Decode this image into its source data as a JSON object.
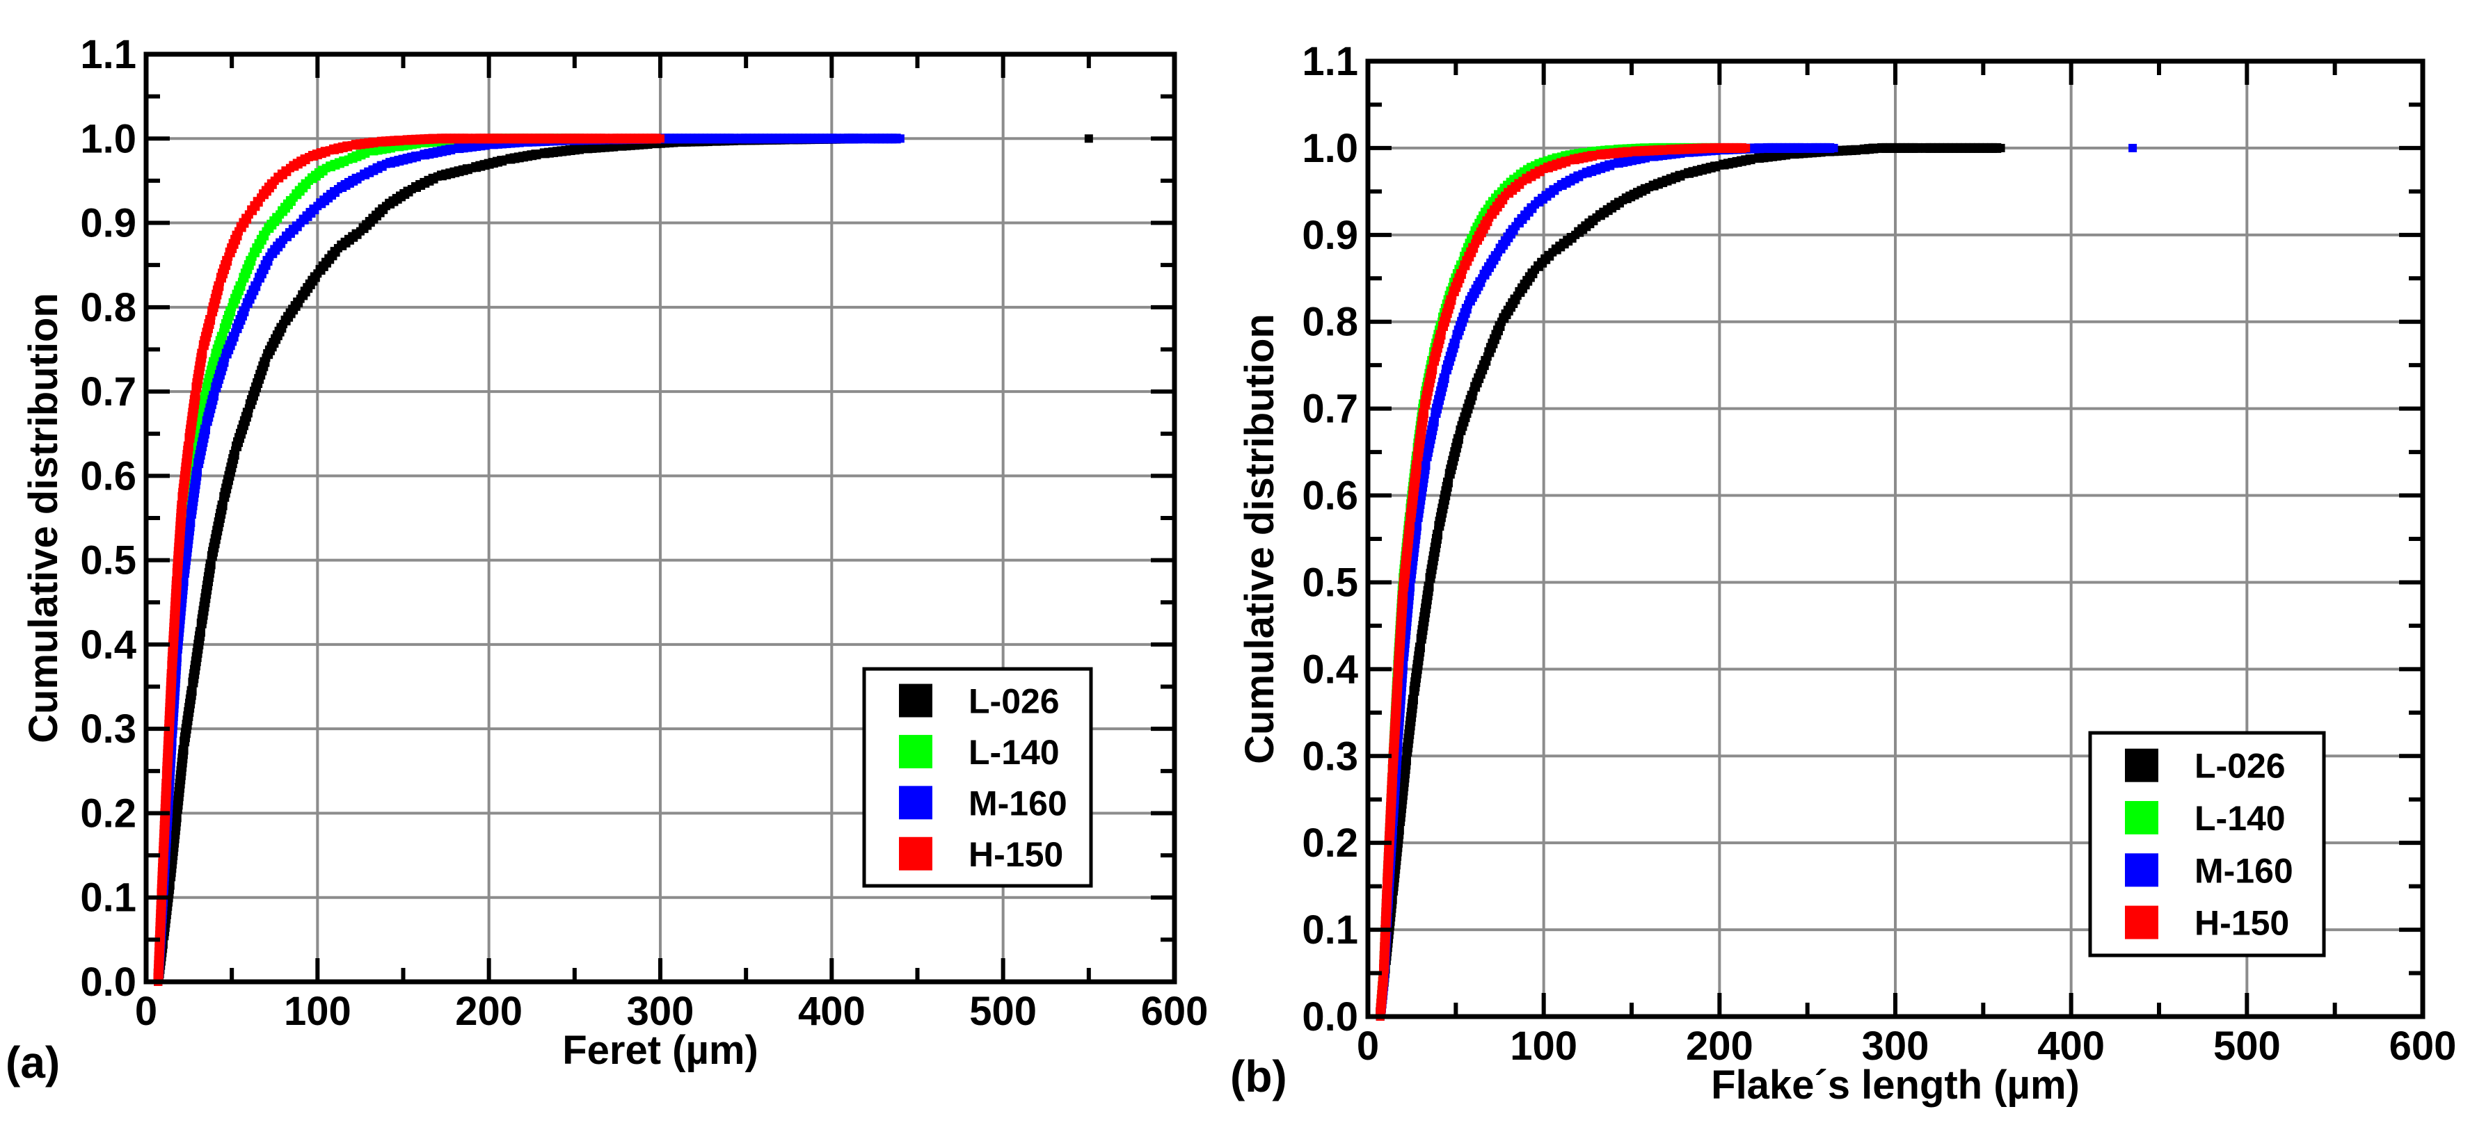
{
  "chart_data": [
    {
      "type": "scatter",
      "panel_label": "(a)",
      "title": "",
      "xlabel": "Feret (µm)",
      "ylabel": "Cumulative distribution",
      "xlim": [
        0,
        600
      ],
      "ylim": [
        0,
        1.1
      ],
      "xticks": [
        "0",
        "100",
        "200",
        "300",
        "400",
        "500",
        "600"
      ],
      "yticks": [
        "0.0",
        "0.1",
        "0.2",
        "0.3",
        "0.4",
        "0.5",
        "0.6",
        "0.7",
        "0.8",
        "0.9",
        "1.0",
        "1.1"
      ],
      "grid": true,
      "legend_position": "bottom-right",
      "series": [
        {
          "name": "L-026",
          "color": "#000000",
          "x": [
            7,
            10,
            14,
            18,
            22,
            27,
            32,
            38,
            45,
            52,
            60,
            70,
            80,
            90,
            100,
            112,
            125,
            140,
            155,
            170,
            190,
            210,
            230,
            255,
            275,
            295,
            310,
            330,
            345,
            375,
            415,
            550
          ],
          "y": [
            0.0,
            0.05,
            0.12,
            0.2,
            0.28,
            0.35,
            0.42,
            0.5,
            0.57,
            0.63,
            0.68,
            0.74,
            0.78,
            0.81,
            0.84,
            0.87,
            0.89,
            0.92,
            0.94,
            0.955,
            0.965,
            0.975,
            0.982,
            0.988,
            0.991,
            0.994,
            0.996,
            0.997,
            0.998,
            0.999,
            1.0,
            1.0
          ]
        },
        {
          "name": "L-140",
          "color": "#00ff00",
          "x": [
            7,
            9,
            12,
            15,
            18,
            22,
            26,
            30,
            35,
            40,
            45,
            50,
            56,
            62,
            70,
            78,
            86,
            95,
            105,
            118,
            130,
            145,
            160,
            180,
            200,
            225,
            255
          ],
          "y": [
            0.0,
            0.08,
            0.2,
            0.32,
            0.42,
            0.52,
            0.59,
            0.65,
            0.7,
            0.74,
            0.77,
            0.8,
            0.83,
            0.86,
            0.89,
            0.91,
            0.93,
            0.95,
            0.965,
            0.975,
            0.985,
            0.99,
            0.995,
            0.998,
            1.0,
            1.0,
            1.0
          ]
        },
        {
          "name": "M-160",
          "color": "#0000ff",
          "x": [
            7,
            9,
            12,
            15,
            18,
            22,
            26,
            30,
            35,
            40,
            46,
            52,
            58,
            65,
            72,
            80,
            90,
            100,
            112,
            125,
            140,
            160,
            180,
            200,
            220,
            245,
            270,
            300,
            345,
            405,
            420,
            440
          ],
          "y": [
            0.0,
            0.07,
            0.18,
            0.29,
            0.39,
            0.48,
            0.55,
            0.61,
            0.66,
            0.7,
            0.74,
            0.77,
            0.8,
            0.83,
            0.86,
            0.88,
            0.9,
            0.92,
            0.94,
            0.955,
            0.97,
            0.98,
            0.988,
            0.993,
            0.996,
            0.998,
            0.999,
            1.0,
            1.0,
            1.0,
            1.0,
            1.0
          ]
        },
        {
          "name": "H-150",
          "color": "#ff0000",
          "x": [
            7,
            9,
            12,
            15,
            18,
            21,
            25,
            29,
            33,
            38,
            43,
            48,
            54,
            60,
            67,
            75,
            84,
            95,
            107,
            120,
            135,
            150,
            170,
            190,
            210,
            240,
            270,
            300
          ],
          "y": [
            0.0,
            0.1,
            0.24,
            0.37,
            0.48,
            0.57,
            0.64,
            0.7,
            0.75,
            0.79,
            0.83,
            0.86,
            0.89,
            0.91,
            0.93,
            0.95,
            0.965,
            0.978,
            0.986,
            0.992,
            0.996,
            0.998,
            1.0,
            1.0,
            1.0,
            1.0,
            1.0,
            1.0
          ]
        }
      ]
    },
    {
      "type": "scatter",
      "panel_label": "(b)",
      "title": "",
      "xlabel": "Flake´s length (µm)",
      "ylabel": "Cumulative distribution",
      "xlim": [
        0,
        600
      ],
      "ylim": [
        0,
        1.1
      ],
      "xticks": [
        "0",
        "100",
        "200",
        "300",
        "400",
        "500",
        "600"
      ],
      "yticks": [
        "0.0",
        "0.1",
        "0.2",
        "0.3",
        "0.4",
        "0.5",
        "0.6",
        "0.7",
        "0.8",
        "0.9",
        "1.0",
        "1.1"
      ],
      "grid": true,
      "legend_position": "bottom-right",
      "series": [
        {
          "name": "L-026",
          "color": "#000000",
          "x": [
            7,
            10,
            14,
            18,
            22,
            26,
            30,
            35,
            40,
            46,
            52,
            60,
            68,
            76,
            85,
            95,
            105,
            118,
            130,
            145,
            160,
            180,
            200,
            220,
            240,
            260,
            280,
            290,
            315,
            360
          ],
          "y": [
            0.0,
            0.06,
            0.14,
            0.22,
            0.3,
            0.37,
            0.43,
            0.5,
            0.56,
            0.62,
            0.67,
            0.72,
            0.76,
            0.8,
            0.83,
            0.86,
            0.88,
            0.9,
            0.92,
            0.94,
            0.955,
            0.97,
            0.98,
            0.988,
            0.993,
            0.996,
            0.998,
            1.0,
            1.0,
            1.0
          ]
        },
        {
          "name": "L-140",
          "color": "#00ff00",
          "x": [
            7,
            9,
            11,
            14,
            17,
            20,
            24,
            28,
            32,
            37,
            42,
            48,
            54,
            60,
            68,
            76,
            85,
            95,
            110,
            125,
            140,
            160,
            185,
            200
          ],
          "y": [
            0.0,
            0.05,
            0.15,
            0.28,
            0.4,
            0.5,
            0.58,
            0.65,
            0.71,
            0.76,
            0.8,
            0.84,
            0.87,
            0.9,
            0.93,
            0.95,
            0.967,
            0.98,
            0.99,
            0.995,
            0.998,
            1.0,
            1.0,
            1.0
          ]
        },
        {
          "name": "M-160",
          "color": "#0000ff",
          "x": [
            7,
            9,
            11,
            14,
            17,
            20,
            24,
            28,
            33,
            38,
            44,
            50,
            57,
            65,
            74,
            84,
            95,
            108,
            122,
            140,
            160,
            180,
            200,
            225,
            250,
            265,
            435
          ],
          "y": [
            0.0,
            0.04,
            0.12,
            0.22,
            0.32,
            0.41,
            0.5,
            0.57,
            0.64,
            0.69,
            0.74,
            0.78,
            0.82,
            0.85,
            0.88,
            0.91,
            0.935,
            0.955,
            0.97,
            0.982,
            0.99,
            0.995,
            0.998,
            1.0,
            1.0,
            1.0,
            1.0
          ]
        },
        {
          "name": "H-150",
          "color": "#ff0000",
          "x": [
            7,
            9,
            11,
            14,
            17,
            20,
            24,
            28,
            32,
            37,
            42,
            48,
            54,
            61,
            69,
            78,
            88,
            100,
            115,
            130,
            150,
            170,
            195,
            215
          ],
          "y": [
            0.0,
            0.05,
            0.15,
            0.28,
            0.39,
            0.49,
            0.57,
            0.64,
            0.7,
            0.75,
            0.79,
            0.83,
            0.86,
            0.89,
            0.92,
            0.945,
            0.962,
            0.976,
            0.986,
            0.992,
            0.996,
            0.998,
            1.0,
            1.0
          ]
        }
      ]
    }
  ]
}
